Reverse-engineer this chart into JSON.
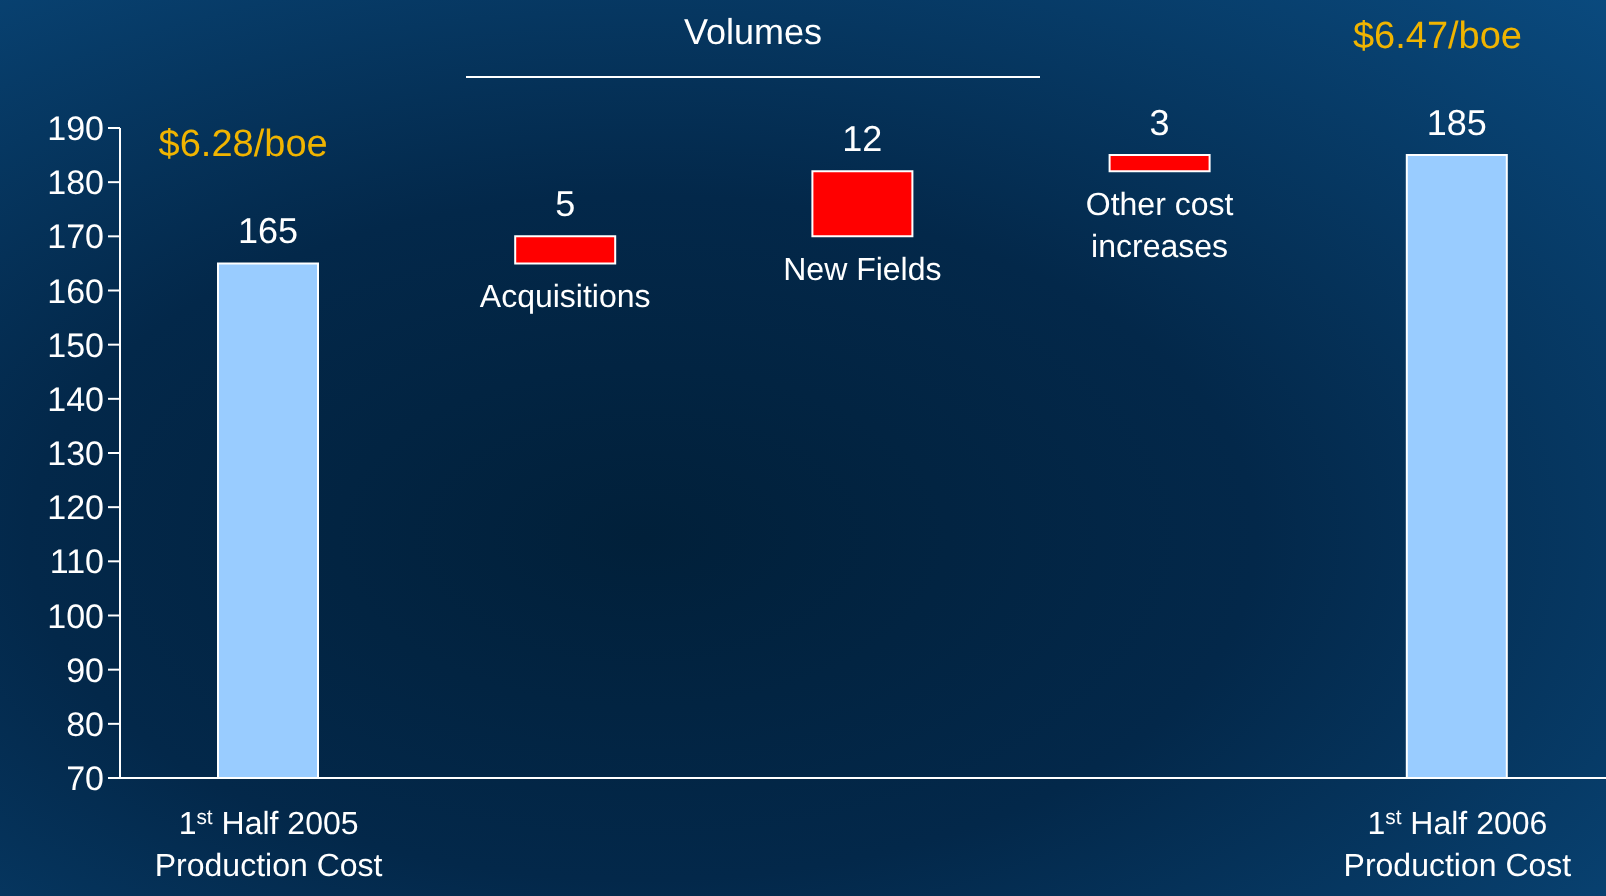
{
  "chart_data": {
    "type": "bar",
    "categories": [
      "1$^{st}$ Half 2005 Production Cost",
      "Acquisitions",
      "New Fields",
      "Other cost increases",
      "1$^{st}$ Half 2006 Production Cost"
    ],
    "values": [
      165,
      5,
      12,
      3,
      185
    ],
    "base": [
      null,
      165,
      170,
      182,
      null
    ],
    "colors": [
      "#99ccff",
      "#ff0000",
      "#ff0000",
      "#ff0000",
      "#99ccff"
    ],
    "ylim": [
      70,
      190
    ],
    "yticks": [
      70,
      80,
      90,
      100,
      110,
      120,
      130,
      140,
      150,
      160,
      170,
      180,
      190
    ],
    "data_labels": true,
    "annotations": [
      "Volumes",
      "$6.28/boe",
      "$6.47/boe"
    ]
  }
}
